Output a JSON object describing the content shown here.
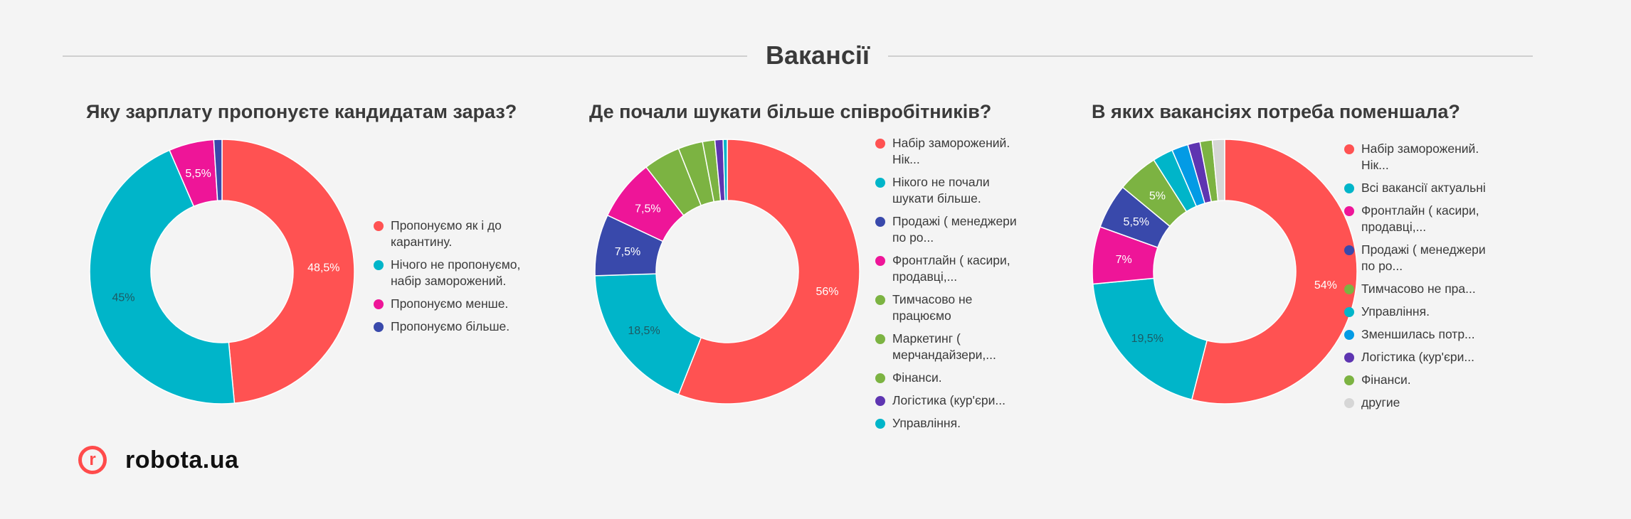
{
  "page": {
    "title": "Вакансії"
  },
  "brand": {
    "logo_letter": "r",
    "name": "robota.ua",
    "logo_color": "#ff4b4b"
  },
  "chart_data": [
    {
      "type": "pie",
      "title": "Яку зарплату пропонуєте кандидатам зараз?",
      "donut": true,
      "legend": "right",
      "series": [
        {
          "name": "Пропонуємо як і до карантину.",
          "value": 48.5,
          "label": "48,5%",
          "color": "#ff5252"
        },
        {
          "name": "Нічого не пропонуємо, набір заморожений.",
          "value": 45,
          "label": "45%",
          "color": "#00b5c9"
        },
        {
          "name": "Пропонуємо менше.",
          "value": 5.5,
          "label": "5,5%",
          "color": "#ee1598"
        },
        {
          "name": "Пропонуємо більше.",
          "value": 1,
          "label": "",
          "color": "#3949ab"
        }
      ]
    },
    {
      "type": "pie",
      "title": "Де почали шукати більше співробітників?",
      "donut": true,
      "legend": "right",
      "series": [
        {
          "name": "Набір заморожений. Нік...",
          "value": 56,
          "label": "56%",
          "color": "#ff5252"
        },
        {
          "name": "Нікого не почали шукати більше.",
          "value": 18.5,
          "label": "18,5%",
          "color": "#00b5c9"
        },
        {
          "name": "Продажі ( менеджери по ро...",
          "value": 7.5,
          "label": "7,5%",
          "color": "#3949ab"
        },
        {
          "name": "Фронтлайн ( касири, продавці,...",
          "value": 7.5,
          "label": "7,5%",
          "color": "#ee1598"
        },
        {
          "name": "Тимчасово не працюємо",
          "value": 4.5,
          "label": "",
          "color": "#7cb342"
        },
        {
          "name": "Маркетинг ( мерчандайзери,...",
          "value": 3,
          "label": "",
          "color": "#7cb342"
        },
        {
          "name": "Фінанси.",
          "value": 1.5,
          "label": "",
          "color": "#7cb342"
        },
        {
          "name": "Логістика (кур'єри...",
          "value": 1,
          "label": "",
          "color": "#5e35b1"
        },
        {
          "name": "Управління.",
          "value": 0.5,
          "label": "",
          "color": "#00b5c9"
        }
      ]
    },
    {
      "type": "pie",
      "title": "В яких вакансіях потреба поменшала?",
      "donut": true,
      "legend": "right",
      "series": [
        {
          "name": "Набір заморожений. Нік...",
          "value": 54,
          "label": "54%",
          "color": "#ff5252"
        },
        {
          "name": "Всі вакансії актуальні",
          "value": 19.5,
          "label": "19,5%",
          "color": "#00b5c9"
        },
        {
          "name": "Фронтлайн ( касири, продавці,...",
          "value": 7,
          "label": "7%",
          "color": "#ee1598"
        },
        {
          "name": "Продажі ( менеджери по ро...",
          "value": 5.5,
          "label": "5,5%",
          "color": "#3949ab"
        },
        {
          "name": "Тимчасово не пра...",
          "value": 5,
          "label": "5%",
          "color": "#7cb342"
        },
        {
          "name": "Управління.",
          "value": 2.5,
          "label": "",
          "color": "#00b5c9"
        },
        {
          "name": "Зменшилась потр...",
          "value": 2,
          "label": "",
          "color": "#039be5"
        },
        {
          "name": "Логістика (кур'єри...",
          "value": 1.5,
          "label": "",
          "color": "#5e35b1"
        },
        {
          "name": "Фінанси.",
          "value": 1.5,
          "label": "",
          "color": "#7cb342"
        },
        {
          "name": "другие",
          "value": 1.5,
          "label": "",
          "color": "#d6d6d6"
        }
      ]
    }
  ]
}
